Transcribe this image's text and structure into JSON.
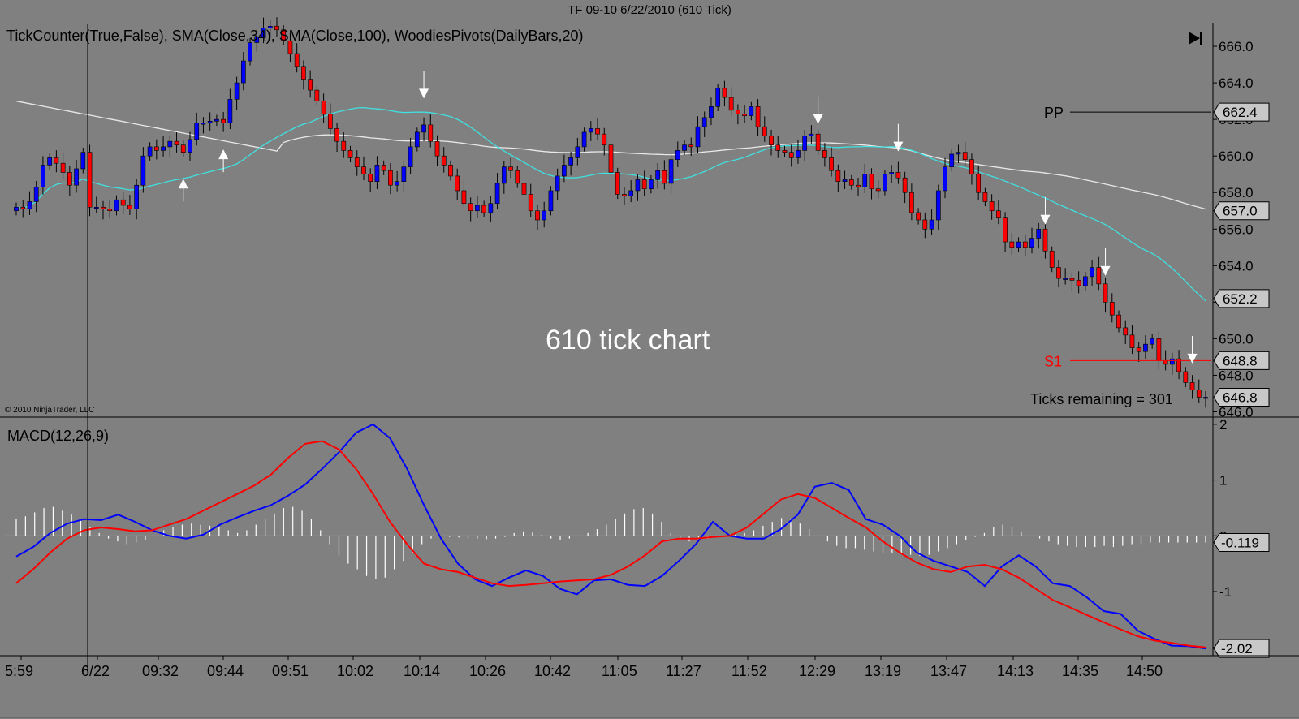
{
  "window": {
    "title": "TF 09-10  6/22/2010 (610 Tick)"
  },
  "price_panel": {
    "indicator_line": "TickCounter(True,False),  SMA(Close,34),  SMA(Close,100),  WoodiesPivots(DailyBars,20)",
    "overlay_text": "610 tick chart",
    "copyright": "© 2010 NinjaTrader, LLC",
    "ticks_remaining": "Ticks remaining = 301",
    "nav_icon": "skip-to-end-icon",
    "pivots": [
      {
        "name": "PP",
        "value": 662.4,
        "color": "#000000"
      },
      {
        "name": "S1",
        "value": 648.8,
        "color": "#ff0000"
      }
    ],
    "axis_ticks": [
      "666.0",
      "664.0",
      "662.0",
      "660.0",
      "658.0",
      "656.0",
      "654.0",
      "652.0",
      "650.0",
      "648.0",
      "646.0"
    ],
    "price_labels": [
      {
        "text": "662.4",
        "value": 662.4
      },
      {
        "text": "657.0",
        "value": 657.0
      },
      {
        "text": "652.2",
        "value": 652.2
      },
      {
        "text": "648.8",
        "value": 648.8
      },
      {
        "text": "646.8",
        "value": 646.8
      }
    ]
  },
  "macd_panel": {
    "title": "MACD(12,26,9)",
    "axis_ticks": [
      "2",
      "1",
      "0",
      "-1",
      "-2"
    ],
    "value_labels": [
      {
        "text": "-0.119",
        "value": -0.119
      },
      {
        "text": "-2.02",
        "value": -2.02
      }
    ]
  },
  "time_axis": [
    "5:59",
    "6/22",
    "09:32",
    "09:44",
    "09:51",
    "10:02",
    "10:14",
    "10:26",
    "10:42",
    "11:05",
    "11:27",
    "11:52",
    "12:29",
    "13:19",
    "13:47",
    "14:13",
    "14:35",
    "14:50"
  ],
  "colors": {
    "background": "#808080",
    "up_candle": "#0000ff",
    "down_candle": "#ff0000",
    "sma34": "#40e0e0",
    "sma100": "#e8e8e8",
    "macd_line": "#0000ff",
    "signal_line": "#ff0000",
    "histogram": "#ffffff"
  },
  "chart_data": [
    {
      "type": "candlestick",
      "ylim": [
        645.8,
        667.2
      ],
      "y_ticks": [
        666,
        664,
        662,
        660,
        658,
        656,
        654,
        652,
        650,
        648,
        646
      ],
      "close": [
        657.2,
        657.1,
        657.5,
        658.3,
        659.5,
        659.9,
        659.6,
        659.1,
        658.4,
        659.3,
        660.2,
        657.2,
        657.2,
        657.1,
        657.0,
        657.6,
        657.3,
        657.1,
        658.4,
        660.0,
        660.5,
        660.3,
        660.5,
        660.8,
        660.6,
        660.2,
        660.9,
        661.8,
        661.8,
        661.9,
        662.0,
        661.8,
        663.1,
        664.0,
        665.2,
        666.2,
        666.5,
        667.0,
        667.1,
        666.9,
        666.3,
        665.6,
        664.9,
        664.2,
        663.6,
        663.0,
        662.3,
        661.5,
        660.8,
        660.3,
        659.9,
        659.4,
        659.0,
        658.6,
        659.5,
        659.2,
        658.4,
        658.6,
        659.4,
        660.5,
        661.3,
        661.7,
        660.8,
        660.0,
        659.5,
        658.9,
        658.1,
        657.4,
        657.0,
        657.3,
        656.9,
        657.4,
        658.5,
        659.4,
        659.2,
        658.5,
        657.9,
        657.0,
        656.5,
        657.0,
        658.1,
        658.9,
        659.5,
        659.9,
        660.5,
        661.3,
        661.5,
        661.2,
        660.6,
        659.1,
        657.9,
        657.8,
        658.1,
        658.7,
        658.2,
        658.7,
        659.2,
        658.5,
        659.8,
        660.3,
        660.6,
        660.5,
        661.6,
        662.1,
        662.7,
        663.7,
        663.2,
        662.5,
        662.3,
        662.2,
        662.7,
        661.6,
        661.1,
        660.6,
        660.3,
        660.2,
        659.9,
        660.3,
        661.1,
        661.2,
        660.3,
        659.9,
        659.2,
        658.6,
        658.7,
        658.4,
        658.3,
        659.0,
        658.2,
        658.1,
        659.0,
        659.1,
        658.8,
        658.0,
        656.9,
        656.5,
        656.0,
        656.5,
        658.1,
        659.4,
        660.1,
        660.2,
        659.8,
        659.0,
        658.0,
        657.5,
        657.0,
        656.6,
        655.3,
        655.0,
        655.3,
        655.0,
        655.5,
        656.0,
        654.8,
        653.9,
        653.3,
        653.3,
        653.2,
        652.9,
        653.4,
        653.9,
        653.0,
        652.0,
        651.3,
        650.6,
        650.2,
        649.5,
        649.3,
        649.7,
        650.0,
        648.8,
        648.6,
        648.9,
        648.2,
        647.6,
        647.2,
        646.8,
        646.8
      ]
    },
    {
      "type": "line",
      "series": [
        {
          "name": "MACD",
          "values": [
            -0.37,
            -0.2,
            0.05,
            0.22,
            0.3,
            0.28,
            0.38,
            0.25,
            0.1,
            0.0,
            -0.05,
            0.02,
            0.2,
            0.33,
            0.45,
            0.55,
            0.72,
            0.92,
            1.2,
            1.5,
            1.85,
            2.0,
            1.75,
            1.2,
            0.55,
            -0.05,
            -0.5,
            -0.78,
            -0.9,
            -0.75,
            -0.62,
            -0.72,
            -0.95,
            -1.05,
            -0.8,
            -0.78,
            -0.88,
            -0.9,
            -0.72,
            -0.45,
            -0.15,
            0.25,
            0.0,
            -0.05,
            -0.05,
            0.12,
            0.38,
            0.88,
            0.95,
            0.82,
            0.3,
            0.2,
            0.0,
            -0.3,
            -0.45,
            -0.55,
            -0.65,
            -0.9,
            -0.55,
            -0.35,
            -0.55,
            -0.85,
            -0.9,
            -1.1,
            -1.35,
            -1.4,
            -1.7,
            -1.85,
            -1.97,
            -1.98,
            -2.02
          ]
        },
        {
          "name": "Signal",
          "values": [
            -0.85,
            -0.6,
            -0.3,
            -0.05,
            0.1,
            0.15,
            0.12,
            0.08,
            0.1,
            0.2,
            0.3,
            0.45,
            0.6,
            0.75,
            0.9,
            1.1,
            1.4,
            1.65,
            1.7,
            1.55,
            1.2,
            0.75,
            0.25,
            -0.15,
            -0.5,
            -0.6,
            -0.65,
            -0.75,
            -0.85,
            -0.9,
            -0.88,
            -0.85,
            -0.82,
            -0.8,
            -0.78,
            -0.7,
            -0.55,
            -0.35,
            -0.1,
            -0.05,
            -0.05,
            -0.02,
            0.0,
            0.15,
            0.4,
            0.65,
            0.75,
            0.68,
            0.5,
            0.32,
            0.15,
            -0.1,
            -0.3,
            -0.48,
            -0.6,
            -0.65,
            -0.55,
            -0.52,
            -0.6,
            -0.75,
            -0.95,
            -1.15,
            -1.28,
            -1.42,
            -1.55,
            -1.68,
            -1.8,
            -1.88,
            -1.92,
            -1.97,
            -2.0
          ]
        }
      ],
      "bar_series": {
        "name": "Histogram",
        "values": [
          0.3,
          0.35,
          0.42,
          0.5,
          0.52,
          0.45,
          0.38,
          0.28,
          0.15,
          0.05,
          -0.05,
          -0.1,
          -0.15,
          -0.12,
          -0.08,
          0.0,
          0.1,
          0.15,
          0.2,
          0.22,
          0.2,
          0.18,
          0.15,
          0.1,
          0.05,
          0.1,
          0.2,
          0.3,
          0.4,
          0.5,
          0.52,
          0.45,
          0.3,
          0.1,
          -0.15,
          -0.35,
          -0.5,
          -0.6,
          -0.72,
          -0.78,
          -0.75,
          -0.6,
          -0.45,
          -0.3,
          -0.15,
          -0.05,
          0.0,
          -0.02,
          -0.03,
          -0.04,
          -0.05,
          -0.06,
          -0.05,
          -0.02,
          0.05,
          0.08,
          0.06,
          0.02,
          -0.05,
          -0.08,
          -0.05,
          0.0,
          0.05,
          0.12,
          0.2,
          0.3,
          0.4,
          0.48,
          0.5,
          0.4,
          0.25,
          0.05,
          -0.08,
          -0.1,
          -0.08,
          -0.05,
          -0.02,
          0.0,
          0.02,
          0.05,
          0.1,
          0.18,
          0.25,
          0.32,
          0.3,
          0.22,
          0.12,
          0.0,
          -0.1,
          -0.18,
          -0.22,
          -0.22,
          -0.25,
          -0.28,
          -0.3,
          -0.3,
          -0.32,
          -0.34,
          -0.36,
          -0.34,
          -0.28,
          -0.22,
          -0.15,
          -0.08,
          -0.02,
          0.05,
          0.15,
          0.2,
          0.15,
          0.08,
          0.0,
          -0.05,
          -0.1,
          -0.15,
          -0.18,
          -0.2,
          -0.2,
          -0.2,
          -0.18,
          -0.2,
          -0.18,
          -0.15,
          -0.15,
          -0.12,
          -0.12,
          -0.12,
          -0.12,
          -0.12,
          -0.12,
          -0.12
        ]
      },
      "ylim": [
        -2.15,
        2.1
      ],
      "y_ticks": [
        2,
        1,
        0,
        -1,
        -2
      ]
    }
  ]
}
